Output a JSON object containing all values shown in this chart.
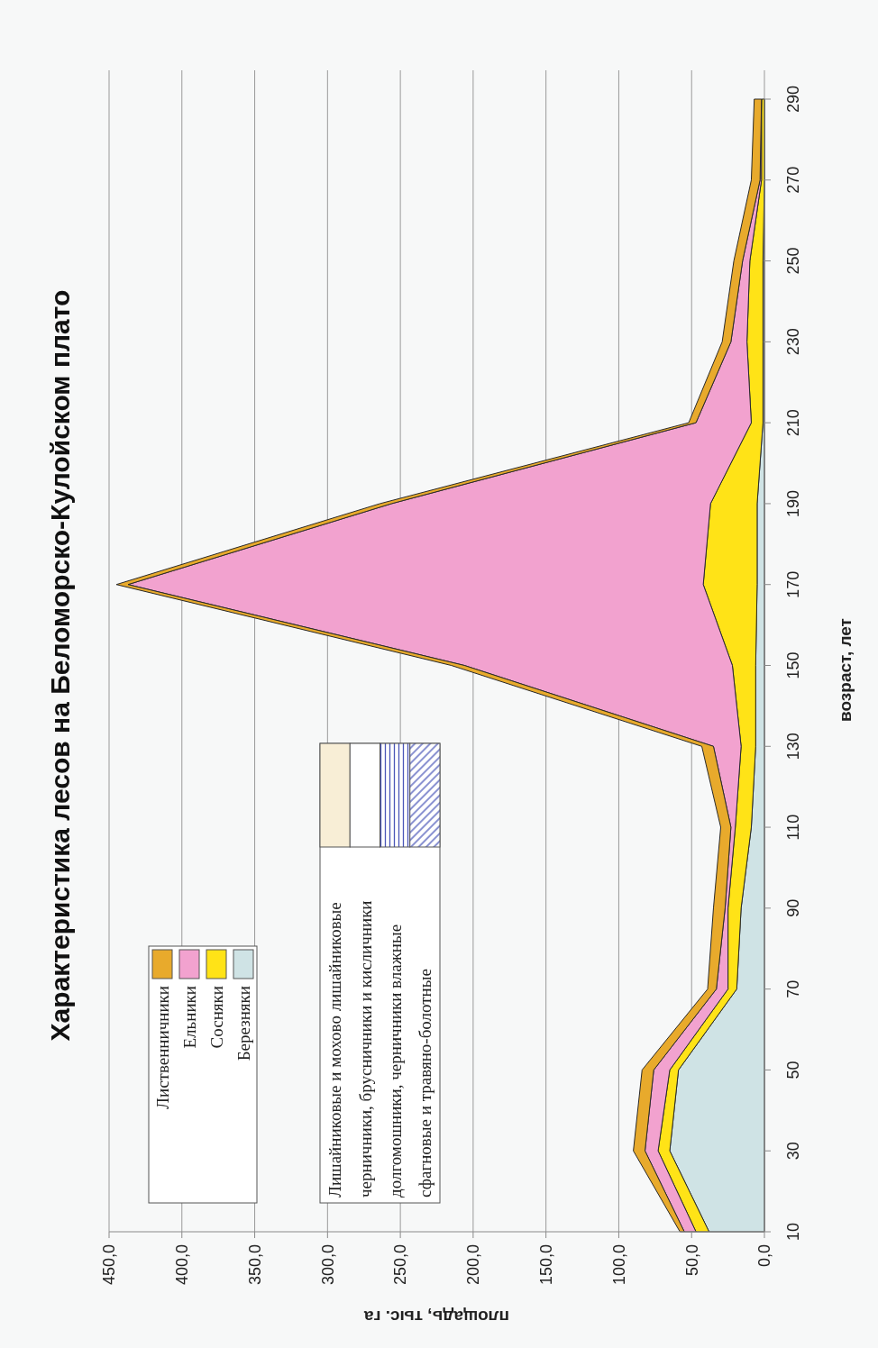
{
  "chart_data": {
    "type": "area",
    "orientation": "horizontal",
    "title": "Характеристика лесов на Беломорско-Кулойском плато",
    "xlabel": "площадь, тыс. га",
    "ylabel": "возраст, лет",
    "categories": [
      "290",
      "270",
      "250",
      "230",
      "210",
      "190",
      "170",
      "150",
      "130",
      "110",
      "90",
      "70",
      "50",
      "30",
      "10"
    ],
    "stacked": true,
    "series": [
      {
        "name": "Березняки",
        "color": "#cfe3e5",
        "values": [
          0,
          0,
          1,
          1,
          1,
          5,
          5,
          6,
          6,
          9,
          16,
          19,
          59,
          65,
          38
        ]
      },
      {
        "name": "Сосняки",
        "color": "#ffe317",
        "values": [
          2,
          2,
          9,
          11,
          8,
          32,
          37,
          16,
          10,
          11,
          9,
          6,
          6,
          8,
          9
        ]
      },
      {
        "name": "Ельники",
        "color": "#f2a2cf",
        "values": [
          0,
          1,
          5,
          11,
          38,
          219,
          395,
          184,
          19,
          3,
          2,
          8,
          11,
          9,
          8
        ]
      },
      {
        "name": "Лиственничники",
        "color": "#e8aa2c",
        "values": [
          5,
          6,
          6,
          6,
          5,
          8,
          8,
          9,
          8,
          7,
          8,
          6,
          8,
          8,
          3
        ]
      }
    ],
    "xlim": [
      450,
      0
    ],
    "xticks": [
      {
        "value": 450,
        "label": "450,0"
      },
      {
        "value": 400,
        "label": "400,0"
      },
      {
        "value": 350,
        "label": "350,0"
      },
      {
        "value": 300,
        "label": "300,0"
      },
      {
        "value": 250,
        "label": "250,0"
      },
      {
        "value": 200,
        "label": "200,0"
      },
      {
        "value": 150,
        "label": "150,0"
      },
      {
        "value": 100,
        "label": "100,0"
      },
      {
        "value": 50,
        "label": "50,0"
      },
      {
        "value": 0,
        "label": "0,0"
      }
    ],
    "grid": "x",
    "legend": "bottom left",
    "annotations": [
      "Лишайниковые и мохово лишайниковые",
      "черничники, брусничники и кисличники",
      "долгомошники, черничники влажные",
      "сфагновые и травяно-болотные"
    ]
  }
}
